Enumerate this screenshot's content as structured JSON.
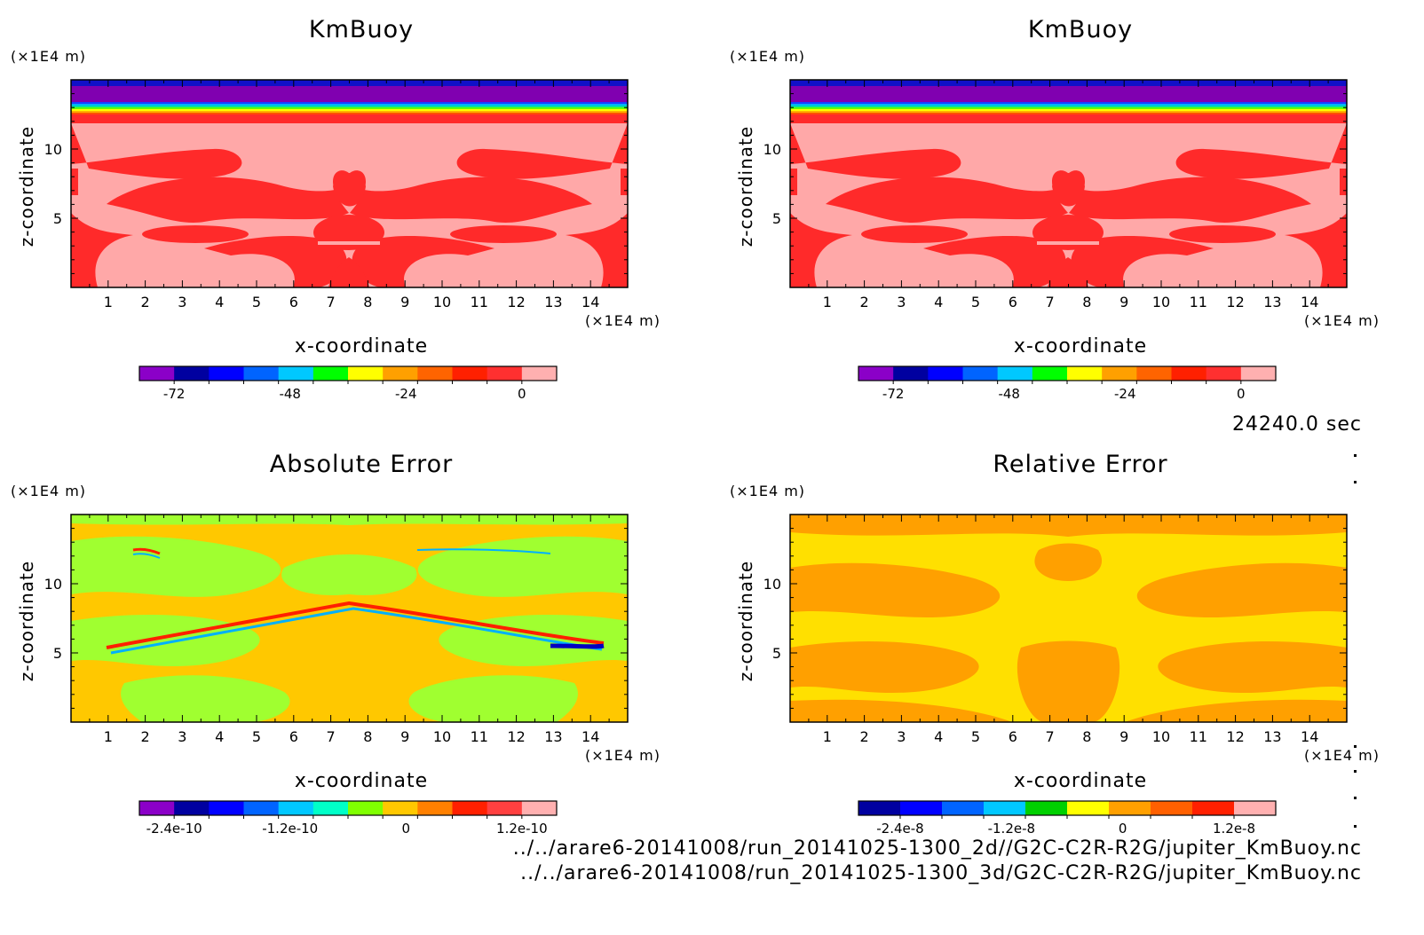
{
  "time_label": "24240.0 sec",
  "file_paths": [
    "../../arare6-20141008/run_20141025-1300_2d//G2C-C2R-R2G/jupiter_KmBuoy.nc",
    "../../arare6-20141008/run_20141025-1300_3d/G2C-C2R-R2G/jupiter_KmBuoy.nc"
  ],
  "chart_data": [
    {
      "id": "top-left",
      "type": "heatmap",
      "title": "KmBuoy",
      "xlabel": "x-coordinate",
      "ylabel": "z-coordinate",
      "x_unit": "(×1E4 m)",
      "z_unit": "(×1E4 m)",
      "xlim": [
        0,
        15
      ],
      "zlim": [
        0,
        15
      ],
      "x_ticks": [
        "1",
        "2",
        "3",
        "4",
        "5",
        "6",
        "7",
        "8",
        "9",
        "10",
        "11",
        "12",
        "13",
        "14"
      ],
      "z_ticks": [
        "5",
        "10"
      ],
      "pattern": "kmbuoy",
      "colorbar_colors": [
        "#8b00c8",
        "#0000a0",
        "#0000ff",
        "#0064ff",
        "#00c8ff",
        "#00ff00",
        "#ffff00",
        "#ffa000",
        "#ff6400",
        "#ff2000",
        "#ff3030",
        "#ffb0b0"
      ],
      "colorbar_ticks": [
        "-72",
        "-48",
        "-24",
        "0"
      ]
    },
    {
      "id": "top-right",
      "type": "heatmap",
      "title": "KmBuoy",
      "xlabel": "x-coordinate",
      "ylabel": "z-coordinate",
      "x_unit": "(×1E4 m)",
      "z_unit": "(×1E4 m)",
      "xlim": [
        0,
        15
      ],
      "zlim": [
        0,
        15
      ],
      "x_ticks": [
        "1",
        "2",
        "3",
        "4",
        "5",
        "6",
        "7",
        "8",
        "9",
        "10",
        "11",
        "12",
        "13",
        "14"
      ],
      "z_ticks": [
        "5",
        "10"
      ],
      "pattern": "kmbuoy",
      "colorbar_colors": [
        "#8b00c8",
        "#0000a0",
        "#0000ff",
        "#0064ff",
        "#00c8ff",
        "#00ff00",
        "#ffff00",
        "#ffa000",
        "#ff6400",
        "#ff2000",
        "#ff3030",
        "#ffb0b0"
      ],
      "colorbar_ticks": [
        "-72",
        "-48",
        "-24",
        "0"
      ]
    },
    {
      "id": "bottom-left",
      "type": "heatmap",
      "title": "Absolute Error",
      "xlabel": "x-coordinate",
      "ylabel": "z-coordinate",
      "x_unit": "(×1E4 m)",
      "z_unit": "(×1E4 m)",
      "xlim": [
        0,
        15
      ],
      "zlim": [
        0,
        15
      ],
      "x_ticks": [
        "1",
        "2",
        "3",
        "4",
        "5",
        "6",
        "7",
        "8",
        "9",
        "10",
        "11",
        "12",
        "13",
        "14"
      ],
      "z_ticks": [
        "5",
        "10"
      ],
      "pattern": "abserr",
      "colorbar_colors": [
        "#8b00c8",
        "#0000a0",
        "#0000ff",
        "#0064ff",
        "#00c8ff",
        "#00ffc8",
        "#80ff00",
        "#ffc800",
        "#ff8000",
        "#ff2000",
        "#ff4040",
        "#ffb0b0"
      ],
      "colorbar_ticks": [
        "-2.4e-10",
        "-1.2e-10",
        "0",
        "1.2e-10"
      ]
    },
    {
      "id": "bottom-right",
      "type": "heatmap",
      "title": "Relative Error",
      "xlabel": "x-coordinate",
      "ylabel": "z-coordinate",
      "x_unit": "(×1E4 m)",
      "z_unit": "(×1E4 m)",
      "xlim": [
        0,
        15
      ],
      "zlim": [
        0,
        15
      ],
      "x_ticks": [
        "1",
        "2",
        "3",
        "4",
        "5",
        "6",
        "7",
        "8",
        "9",
        "10",
        "11",
        "12",
        "13",
        "14"
      ],
      "z_ticks": [
        "5",
        "10"
      ],
      "pattern": "relerr",
      "colorbar_colors": [
        "#0000a0",
        "#0000ff",
        "#0064ff",
        "#00c8ff",
        "#00d000",
        "#ffff00",
        "#ffa000",
        "#ff6000",
        "#ff2000",
        "#ffb0b0"
      ],
      "colorbar_ticks": [
        "-2.4e-8",
        "-1.2e-8",
        "0",
        "1.2e-8"
      ]
    }
  ]
}
